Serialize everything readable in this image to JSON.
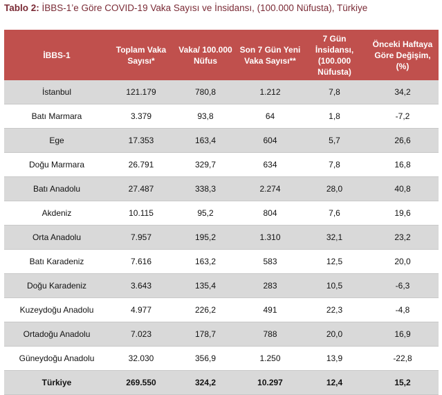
{
  "title": {
    "prefix": "Tablo 2:",
    "text": " İBBS-1’e Göre COVID-19 Vaka Sayısı ve İnsidansı, (100.000 Nüfusta), Türkiye"
  },
  "table": {
    "headers": [
      "İBBS-1",
      "Toplam Vaka Sayısı*",
      "Vaka/ 100.000 Nüfus",
      "Son 7 Gün Yeni Vaka Sayısı**",
      "7 Gün İnsidansı, (100.000 Nüfusta)",
      "Önceki Haftaya Göre Değişim, (%)"
    ],
    "rows": [
      [
        "İstanbul",
        "121.179",
        "780,8",
        "1.212",
        "7,8",
        "34,2"
      ],
      [
        "Batı Marmara",
        "3.379",
        "93,8",
        "64",
        "1,8",
        "-7,2"
      ],
      [
        "Ege",
        "17.353",
        "163,4",
        "604",
        "5,7",
        "26,6"
      ],
      [
        "Doğu Marmara",
        "26.791",
        "329,7",
        "634",
        "7,8",
        "16,8"
      ],
      [
        "Batı Anadolu",
        "27.487",
        "338,3",
        "2.274",
        "28,0",
        "40,8"
      ],
      [
        "Akdeniz",
        "10.115",
        "95,2",
        "804",
        "7,6",
        "19,6"
      ],
      [
        "Orta Anadolu",
        "7.957",
        "195,2",
        "1.310",
        "32,1",
        "23,2"
      ],
      [
        "Batı Karadeniz",
        "7.616",
        "163,2",
        "583",
        "12,5",
        "20,0"
      ],
      [
        "Doğu Karadeniz",
        "3.643",
        "135,4",
        "283",
        "10,5",
        "-6,3"
      ],
      [
        "Kuzeydoğu Anadolu",
        "4.977",
        "226,2",
        "491",
        "22,3",
        "-4,8"
      ],
      [
        "Ortadoğu Anadolu",
        "7.023",
        "178,7",
        "788",
        "20,0",
        "16,9"
      ],
      [
        "Güneydoğu Anadolu",
        "32.030",
        "356,9",
        "1.250",
        "13,9",
        "-22,8"
      ]
    ],
    "total": [
      "Türkiye",
      "269.550",
      "324,2",
      "10.297",
      "12,4",
      "15,2"
    ]
  }
}
